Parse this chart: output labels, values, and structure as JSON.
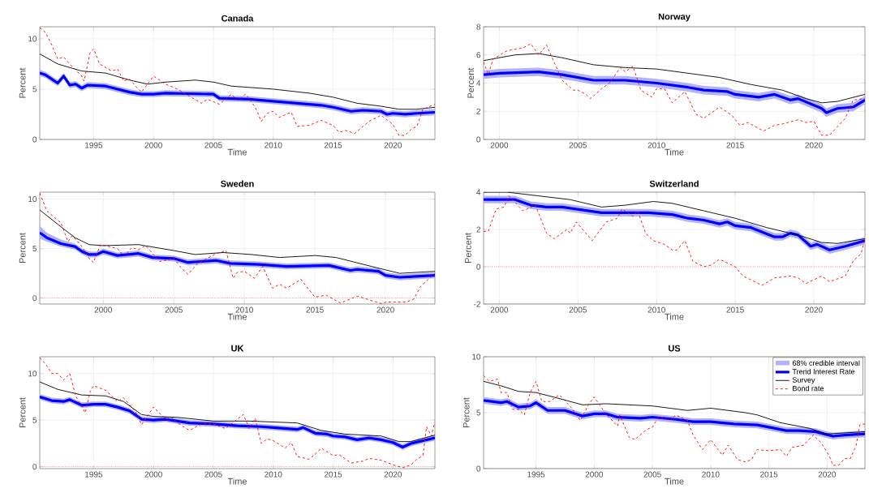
{
  "chart_data": [
    {
      "type": "line",
      "title": "Canada",
      "xlabel": "Time",
      "ylabel": "Percent",
      "xlim": [
        1990.5,
        2023.5
      ],
      "ylim": [
        0,
        11.2
      ],
      "xticks": [
        1995,
        2000,
        2005,
        2010,
        2015,
        2020
      ],
      "yticks": [
        0,
        5,
        10
      ],
      "grid": true,
      "series": [
        {
          "type": "line",
          "color": "#0000ff",
          "x": [
            1990.5,
            1991,
            1992,
            1992.5,
            1993,
            1993.5,
            1994,
            1994.5,
            1996,
            1998,
            1999,
            2000,
            2001,
            2005,
            2005.5,
            2008,
            2011,
            2014,
            2015,
            2016.5,
            2017.5,
            2019,
            2019.5,
            2020,
            2021,
            2022,
            2023.5
          ],
          "values": [
            6.6,
            6.4,
            5.6,
            6.3,
            5.4,
            5.5,
            5.1,
            5.4,
            5.3,
            4.7,
            4.5,
            4.5,
            4.6,
            4.5,
            4.1,
            4.0,
            3.7,
            3.4,
            3.2,
            2.8,
            2.9,
            2.8,
            2.5,
            2.6,
            2.5,
            2.6,
            2.7
          ],
          "lower": [
            6.3,
            6.1,
            5.3,
            6.0,
            5.1,
            5.2,
            4.8,
            5.1,
            5.0,
            4.4,
            4.2,
            4.2,
            4.3,
            4.2,
            3.8,
            3.7,
            3.4,
            3.1,
            2.9,
            2.5,
            2.6,
            2.5,
            2.2,
            2.3,
            2.2,
            2.3,
            2.4
          ],
          "upper": [
            6.9,
            6.7,
            5.9,
            6.6,
            5.7,
            5.8,
            5.4,
            5.7,
            5.6,
            5.0,
            4.8,
            4.8,
            4.9,
            4.8,
            4.4,
            4.3,
            4.0,
            3.7,
            3.5,
            3.1,
            3.2,
            3.1,
            2.8,
            2.9,
            2.8,
            2.9,
            3.0
          ]
        },
        {
          "type": "line",
          "color": "#000000",
          "x": [
            1990.5,
            1992,
            1994,
            1996,
            1998,
            1999.5,
            2001,
            2003.5,
            2005,
            2006.5,
            2010,
            2013,
            2015,
            2017,
            2019,
            2020.5,
            2022,
            2023.5
          ],
          "values": [
            8.5,
            7.5,
            6.8,
            6.6,
            5.9,
            5.5,
            5.7,
            5.9,
            5.7,
            5.3,
            5.0,
            4.6,
            4.2,
            3.6,
            3.3,
            3.0,
            3.0,
            3.2
          ]
        },
        {
          "type": "line",
          "color": "#ff0000",
          "line_style": "dashed",
          "x": [
            1990.5,
            1991,
            1991.5,
            1992,
            1992.5,
            1993,
            1994,
            1994.2,
            1994.7,
            1995,
            1995.5,
            1996.5,
            1997,
            1997.5,
            1998,
            1998.5,
            1999,
            2000,
            2001,
            2002,
            2003,
            2004,
            2004.5,
            2005.5,
            2006.5,
            2007,
            2007.7,
            2008.5,
            2009,
            2009.5,
            2010,
            2010.5,
            2011.5,
            2012,
            2013,
            2014,
            2015,
            2015.5,
            2016,
            2016.8,
            2017.5,
            2018,
            2019,
            2020,
            2020.5,
            2021,
            2021.5,
            2022,
            2022.5,
            2023.5
          ],
          "values": [
            11.1,
            10.6,
            9.4,
            8.0,
            8.2,
            7.5,
            6.3,
            5.8,
            8.6,
            9.0,
            7.5,
            6.8,
            7.0,
            5.8,
            6.0,
            5.3,
            4.7,
            6.3,
            5.5,
            5.0,
            4.3,
            3.6,
            4.0,
            3.5,
            4.5,
            3.9,
            4.5,
            3.2,
            1.8,
            2.6,
            2.8,
            2.2,
            2.7,
            1.3,
            1.4,
            1.9,
            1.4,
            0.7,
            0.9,
            0.6,
            1.3,
            1.8,
            2.4,
            1.5,
            0.4,
            0.4,
            1.0,
            1.3,
            3.0,
            3.5
          ]
        }
      ]
    },
    {
      "type": "line",
      "title": "Norway",
      "xlabel": "Time",
      "ylabel": "Percent",
      "xlim": [
        1999,
        2023.25
      ],
      "ylim": [
        0,
        8
      ],
      "xticks": [
        2000,
        2005,
        2010,
        2015,
        2020
      ],
      "yticks": [
        0,
        2,
        4,
        6,
        8
      ],
      "grid": true,
      "series": [
        {
          "type": "line",
          "color": "#0000ff",
          "x": [
            1999,
            2000,
            2002.5,
            2004,
            2005,
            2006,
            2008,
            2010,
            2012,
            2013,
            2014.5,
            2015,
            2016.5,
            2017.5,
            2018.5,
            2019,
            2020.5,
            2020.8,
            2021.5,
            2022.5,
            2023.25
          ],
          "values": [
            4.6,
            4.7,
            4.8,
            4.6,
            4.4,
            4.2,
            4.2,
            4.0,
            3.7,
            3.5,
            3.4,
            3.2,
            3.0,
            3.2,
            2.8,
            2.9,
            2.2,
            1.9,
            2.2,
            2.3,
            2.8
          ],
          "lower": [
            4.3,
            4.4,
            4.5,
            4.3,
            4.1,
            3.9,
            3.9,
            3.7,
            3.4,
            3.2,
            3.1,
            2.9,
            2.7,
            2.9,
            2.5,
            2.6,
            1.9,
            1.6,
            1.9,
            2.0,
            2.5
          ],
          "upper": [
            4.9,
            5.0,
            5.1,
            4.9,
            4.7,
            4.5,
            4.5,
            4.3,
            4.0,
            3.8,
            3.7,
            3.5,
            3.3,
            3.5,
            3.1,
            3.2,
            2.5,
            2.2,
            2.5,
            2.6,
            3.1
          ]
        },
        {
          "type": "line",
          "color": "#000000",
          "x": [
            1999,
            2001,
            2002.5,
            2004,
            2006,
            2008,
            2010,
            2012,
            2014,
            2016,
            2018,
            2019.5,
            2020.5,
            2021.5,
            2023.25
          ],
          "values": [
            5.6,
            6.0,
            6.1,
            5.8,
            5.3,
            5.1,
            5.0,
            4.7,
            4.4,
            3.9,
            3.5,
            2.9,
            2.6,
            2.7,
            3.2
          ]
        },
        {
          "type": "line",
          "color": "#ff0000",
          "line_style": "dashed",
          "x": [
            1999,
            1999.3,
            1999.6,
            2000.5,
            2001.5,
            2002,
            2002.5,
            2003,
            2004,
            2004.7,
            2005,
            2005.5,
            2005.8,
            2006.5,
            2007,
            2007.7,
            2008,
            2008.5,
            2009,
            2009.7,
            2010,
            2010.5,
            2011,
            2011.8,
            2012.5,
            2013,
            2014,
            2014.8,
            2015.3,
            2015.8,
            2016.8,
            2017.5,
            2018,
            2019,
            2019.5,
            2020,
            2020.5,
            2021,
            2022,
            2022.5,
            2023.25
          ],
          "values": [
            5.5,
            4.6,
            5.7,
            6.3,
            6.5,
            6.8,
            6.0,
            6.7,
            4.2,
            3.5,
            3.5,
            3.2,
            2.9,
            3.6,
            4.0,
            5.1,
            4.8,
            5.2,
            3.5,
            3.0,
            3.6,
            3.6,
            2.6,
            3.4,
            1.8,
            1.5,
            2.3,
            1.7,
            1.0,
            1.2,
            0.6,
            1.0,
            1.1,
            1.4,
            1.2,
            1.3,
            0.3,
            0.3,
            1.5,
            2.8,
            2.9
          ]
        }
      ]
    },
    {
      "type": "line",
      "title": "Sweden",
      "xlabel": "Time",
      "ylabel": "Percent",
      "xlim": [
        1995.5,
        2023.5
      ],
      "ylim": [
        -0.6,
        10.7
      ],
      "xticks": [
        2000,
        2005,
        2010,
        2015,
        2020
      ],
      "yticks": [
        0,
        5,
        10
      ],
      "grid": true,
      "ref_lines": [
        {
          "axis": "y",
          "value": 0,
          "color": "#ff0000",
          "line_style": "dotted"
        }
      ],
      "series": [
        {
          "type": "line",
          "color": "#0000ff",
          "x": [
            1995.5,
            1996,
            1997,
            1998,
            1998.5,
            1999,
            1999.5,
            2000,
            2001,
            2002.5,
            2003.5,
            2005,
            2006,
            2008,
            2009,
            2011,
            2013,
            2016,
            2017.5,
            2018,
            2019.5,
            2020,
            2021,
            2023.5
          ],
          "values": [
            6.6,
            6.1,
            5.5,
            5.2,
            4.7,
            4.4,
            4.4,
            4.7,
            4.3,
            4.5,
            4.1,
            4.0,
            3.6,
            3.8,
            3.5,
            3.4,
            3.2,
            3.3,
            2.8,
            2.9,
            2.7,
            2.3,
            2.1,
            2.3
          ],
          "lower": [
            6.0,
            5.7,
            5.2,
            4.9,
            4.4,
            4.1,
            4.1,
            4.4,
            4.0,
            4.2,
            3.8,
            3.7,
            3.3,
            3.5,
            3.2,
            3.1,
            2.9,
            3.0,
            2.5,
            2.6,
            2.4,
            2.0,
            1.8,
            2.0
          ],
          "upper": [
            7.3,
            6.6,
            5.9,
            5.5,
            5.0,
            4.7,
            4.7,
            5.0,
            4.6,
            4.8,
            4.4,
            4.3,
            3.9,
            4.1,
            3.8,
            3.7,
            3.5,
            3.6,
            3.1,
            3.2,
            3.0,
            2.6,
            2.4,
            2.6
          ]
        },
        {
          "type": "line",
          "color": "#000000",
          "x": [
            1995.5,
            1997,
            1998,
            1999,
            2000,
            2002.5,
            2005,
            2006.5,
            2008.5,
            2010.5,
            2012.5,
            2015,
            2016.5,
            2019,
            2021,
            2023.5
          ],
          "values": [
            8.9,
            7.2,
            6.1,
            5.4,
            5.3,
            5.4,
            4.8,
            4.4,
            4.6,
            4.4,
            4.1,
            4.3,
            4.1,
            3.2,
            2.5,
            2.7
          ]
        },
        {
          "type": "line",
          "color": "#ff0000",
          "line_style": "dashed",
          "x": [
            1995.5,
            1996,
            1997,
            1997.5,
            1997.8,
            1998.5,
            1999,
            1999.3,
            1999.8,
            2001,
            2001.5,
            2002,
            2002.5,
            2003,
            2004,
            2005,
            2005.5,
            2006,
            2006.7,
            2008,
            2008.7,
            2009.2,
            2009.5,
            2010,
            2010.7,
            2011.3,
            2012,
            2012.5,
            2013,
            2014,
            2015,
            2015.8,
            2016.8,
            2018,
            2019.8,
            2020,
            2021.5,
            2022,
            2022.5,
            2023.5
          ],
          "values": [
            10.6,
            8.8,
            7.6,
            5.7,
            6.3,
            5.2,
            4.0,
            3.6,
            5.4,
            5.0,
            4.2,
            5.1,
            4.9,
            5.3,
            3.7,
            4.0,
            3.1,
            2.4,
            3.5,
            4.5,
            4.8,
            2.0,
            2.6,
            2.7,
            2.0,
            3.2,
            1.0,
            1.4,
            1.0,
            1.9,
            0.1,
            0.3,
            -0.5,
            0.2,
            -0.6,
            -0.4,
            -0.4,
            -0.1,
            1.2,
            2.5
          ]
        }
      ]
    },
    {
      "type": "line",
      "title": "Switzerland",
      "xlabel": "Time",
      "ylabel": "Percent",
      "xlim": [
        1999,
        2023.25
      ],
      "ylim": [
        -2,
        4
      ],
      "xticks": [
        2000,
        2005,
        2010,
        2015,
        2020
      ],
      "yticks": [
        -2,
        0,
        2,
        4
      ],
      "grid": true,
      "ref_lines": [
        {
          "axis": "y",
          "value": 0,
          "color": "#ff0000",
          "line_style": "dotted"
        }
      ],
      "series": [
        {
          "type": "line",
          "color": "#0000ff",
          "x": [
            1999,
            2000,
            2001,
            2002,
            2003,
            2004,
            2006.5,
            2008,
            2009.5,
            2011,
            2012,
            2013,
            2014,
            2014.5,
            2015,
            2016,
            2017.5,
            2018,
            2018.5,
            2019,
            2019.8,
            2020.2,
            2021,
            2022,
            2023.25
          ],
          "values": [
            3.6,
            3.6,
            3.6,
            3.3,
            3.2,
            3.2,
            2.9,
            2.9,
            2.9,
            2.8,
            2.6,
            2.5,
            2.3,
            2.4,
            2.2,
            2.1,
            1.6,
            1.6,
            1.8,
            1.7,
            1.1,
            1.2,
            0.9,
            1.1,
            1.4
          ],
          "lower": [
            3.4,
            3.4,
            3.4,
            3.1,
            3.0,
            3.0,
            2.7,
            2.7,
            2.7,
            2.6,
            2.4,
            2.3,
            2.1,
            2.2,
            2.0,
            1.9,
            1.4,
            1.4,
            1.6,
            1.5,
            0.9,
            1.0,
            0.7,
            0.9,
            1.2
          ],
          "upper": [
            3.8,
            3.8,
            3.8,
            3.5,
            3.4,
            3.4,
            3.1,
            3.1,
            3.1,
            3.0,
            2.8,
            2.7,
            2.5,
            2.6,
            2.4,
            2.3,
            1.8,
            1.8,
            2.0,
            1.9,
            1.3,
            1.4,
            1.1,
            1.3,
            1.6
          ]
        },
        {
          "type": "line",
          "color": "#000000",
          "x": [
            1999,
            2000.5,
            2002.5,
            2004.5,
            2006.5,
            2008,
            2009.8,
            2011,
            2013,
            2015,
            2017,
            2019,
            2020.5,
            2021.5,
            2023.25
          ],
          "values": [
            4.0,
            4.0,
            3.8,
            3.6,
            3.2,
            3.3,
            3.5,
            3.4,
            3.0,
            2.6,
            2.1,
            1.7,
            1.3,
            1.25,
            1.5
          ]
        },
        {
          "type": "line",
          "color": "#ff0000",
          "line_style": "dashed",
          "x": [
            1999,
            1999.3,
            1999.8,
            2000.3,
            2000.6,
            2001.5,
            2002.3,
            2003,
            2003.5,
            2004.3,
            2004.5,
            2004.9,
            2005.5,
            2005.9,
            2006.8,
            2007.5,
            2007.8,
            2008.5,
            2008.8,
            2009.3,
            2009.8,
            2010.5,
            2011,
            2011.3,
            2011.8,
            2012.3,
            2013,
            2013.5,
            2014,
            2014.5,
            2015,
            2015.5,
            2016,
            2016.7,
            2017.5,
            2018.5,
            2019,
            2019.5,
            2020.5,
            2021,
            2022,
            2022.5,
            2023,
            2023.25
          ],
          "values": [
            1.9,
            1.9,
            3.1,
            3.2,
            3.8,
            3.0,
            3.3,
            1.8,
            1.5,
            2.0,
            1.8,
            2.4,
            1.8,
            1.4,
            2.4,
            2.6,
            3.1,
            2.7,
            3.0,
            1.8,
            1.4,
            1.2,
            0.9,
            0.9,
            1.4,
            0.3,
            0.0,
            0.1,
            0.4,
            0.2,
            0.0,
            -0.5,
            -0.7,
            -1.0,
            -0.6,
            -0.5,
            -0.6,
            -0.9,
            -0.5,
            -0.8,
            -0.5,
            0.3,
            0.7,
            1.5
          ]
        }
      ]
    },
    {
      "type": "line",
      "title": "UK",
      "xlabel": "Time",
      "ylabel": "Percent",
      "xlim": [
        1990.5,
        2023.5
      ],
      "ylim": [
        -0.2,
        11.8
      ],
      "xticks": [
        1995,
        2000,
        2005,
        2010,
        2015,
        2020
      ],
      "yticks": [
        0,
        5,
        10
      ],
      "grid": true,
      "ref_lines": [
        {
          "axis": "y",
          "value": 0,
          "color": "#ff0000",
          "line_style": "dotted"
        }
      ],
      "series": [
        {
          "type": "line",
          "color": "#0000ff",
          "x": [
            1990.5,
            1991.5,
            1992.5,
            1993,
            1994,
            1995,
            1996,
            1997,
            1998,
            1999,
            2000,
            2001,
            2003,
            2005,
            2007,
            2009,
            2010,
            2012,
            2012.5,
            2013.5,
            2014.5,
            2015,
            2016,
            2017,
            2018,
            2019,
            2020,
            2020.8,
            2021.5,
            2023.5
          ],
          "values": [
            7.5,
            7.1,
            7.0,
            7.2,
            6.6,
            6.7,
            6.7,
            6.4,
            6.0,
            5.1,
            5.0,
            5.1,
            4.7,
            4.6,
            4.4,
            4.3,
            4.2,
            4.0,
            4.2,
            3.6,
            3.5,
            3.3,
            3.2,
            2.9,
            3.1,
            2.9,
            2.6,
            2.1,
            2.5,
            3.1
          ],
          "lower": [
            7.2,
            6.8,
            6.7,
            6.9,
            6.3,
            6.4,
            6.4,
            6.1,
            5.7,
            4.8,
            4.7,
            4.8,
            4.4,
            4.3,
            4.1,
            4.0,
            3.9,
            3.7,
            3.9,
            3.3,
            3.2,
            3.0,
            2.9,
            2.6,
            2.8,
            2.6,
            2.3,
            1.8,
            2.2,
            2.8
          ],
          "upper": [
            7.8,
            7.4,
            7.3,
            7.5,
            6.9,
            7.0,
            7.0,
            6.7,
            6.3,
            5.4,
            5.3,
            5.4,
            5.0,
            4.9,
            4.7,
            4.6,
            4.5,
            4.3,
            4.5,
            3.9,
            3.8,
            3.6,
            3.5,
            3.2,
            3.4,
            3.2,
            2.9,
            2.4,
            2.8,
            3.4
          ]
        },
        {
          "type": "line",
          "color": "#000000",
          "x": [
            1990.5,
            1992,
            1994,
            1996,
            1997.5,
            1999,
            2000,
            2002,
            2005,
            2008,
            2012,
            2014,
            2016,
            2019,
            2020.5,
            2021.5,
            2023.5
          ],
          "values": [
            9.1,
            8.3,
            7.7,
            7.6,
            7.0,
            5.6,
            5.4,
            5.3,
            4.9,
            4.9,
            4.7,
            3.9,
            3.5,
            3.3,
            2.7,
            2.7,
            3.4
          ]
        },
        {
          "type": "line",
          "color": "#ff0000",
          "line_style": "dashed",
          "x": [
            1990.5,
            1991,
            1991.5,
            1992,
            1992.5,
            1993,
            1993.5,
            1994.3,
            1994.7,
            1995,
            1996,
            1997,
            1997.5,
            1998.5,
            1999,
            2000,
            2001,
            2001.5,
            2002,
            2003,
            2004,
            2005,
            2006,
            2007.5,
            2008,
            2008.5,
            2009,
            2009.5,
            2010,
            2011,
            2011.5,
            2012,
            2013,
            2013.7,
            2014,
            2015,
            2015.5,
            2016.5,
            2017.5,
            2018,
            2019,
            2020,
            2020.8,
            2021.5,
            2022,
            2022.5,
            2022.8,
            2023.2,
            2023.5
          ],
          "values": [
            11.7,
            11.0,
            10.0,
            10.0,
            9.3,
            10.0,
            7.6,
            5.8,
            8.0,
            8.7,
            8.2,
            7.0,
            7.4,
            5.9,
            4.5,
            6.4,
            5.1,
            5.3,
            4.7,
            3.9,
            4.6,
            4.6,
            4.1,
            5.6,
            4.1,
            5.2,
            2.5,
            3.0,
            2.8,
            2.0,
            2.6,
            1.1,
            0.8,
            1.6,
            2.0,
            1.2,
            1.3,
            0.4,
            0.6,
            0.9,
            0.7,
            0.2,
            -0.1,
            0.2,
            0.8,
            1.2,
            4.3,
            3.3,
            4.8
          ]
        }
      ]
    },
    {
      "type": "line",
      "title": "US",
      "xlabel": "Time",
      "ylabel": "Percent",
      "xlim": [
        1990.5,
        2023.25
      ],
      "ylim": [
        0,
        10
      ],
      "xticks": [
        1995,
        2000,
        2005,
        2010,
        2015,
        2020
      ],
      "yticks": [
        0,
        5,
        10
      ],
      "grid": true,
      "legend": "top right",
      "annotations": [
        "68% credible interval"
      ],
      "ref_lines": [
        {
          "axis": "y",
          "value": 0,
          "color": "#ff0000",
          "line_style": "dotted"
        }
      ],
      "series": [
        {
          "type": "line",
          "name": "Trend Interest Rate",
          "color": "#0000ff",
          "x": [
            1990.5,
            1992,
            1992.5,
            1993.5,
            1994.5,
            1995,
            1996,
            1997.5,
            1999,
            2000,
            2001,
            2002,
            2004,
            2005,
            2007,
            2008.5,
            2010,
            2012,
            2014,
            2015,
            2016.5,
            2017.5,
            2019,
            2020.5,
            2021.5,
            2023.25
          ],
          "values": [
            6.1,
            5.9,
            6.0,
            5.5,
            5.6,
            5.9,
            5.2,
            5.2,
            4.7,
            4.9,
            4.9,
            4.6,
            4.5,
            4.6,
            4.4,
            4.2,
            4.2,
            4.0,
            3.9,
            3.7,
            3.4,
            3.4,
            3.3,
            2.9,
            3.0,
            3.1
          ],
          "lower": [
            5.8,
            5.6,
            5.7,
            5.2,
            5.3,
            5.6,
            4.9,
            4.9,
            4.4,
            4.6,
            4.6,
            4.3,
            4.2,
            4.3,
            4.1,
            3.9,
            3.9,
            3.7,
            3.6,
            3.4,
            3.1,
            3.1,
            3.0,
            2.6,
            2.7,
            2.8
          ],
          "upper": [
            6.4,
            6.2,
            6.3,
            5.8,
            5.9,
            6.2,
            5.5,
            5.5,
            5.0,
            5.2,
            5.2,
            4.9,
            4.8,
            4.9,
            4.7,
            4.5,
            4.5,
            4.3,
            4.2,
            4.0,
            3.7,
            3.7,
            3.6,
            3.2,
            3.3,
            3.4
          ]
        },
        {
          "type": "line",
          "name": "Survey",
          "color": "#000000",
          "x": [
            1990.5,
            1992,
            1993.5,
            1995,
            1996.5,
            1999,
            2001,
            2005,
            2008,
            2010,
            2013,
            2014,
            2016,
            2018.5,
            2020,
            2023.25
          ],
          "values": [
            7.8,
            7.4,
            6.9,
            6.8,
            6.4,
            5.7,
            5.8,
            5.6,
            5.2,
            5.4,
            5.0,
            4.8,
            4.1,
            3.6,
            3.1,
            3.3
          ]
        },
        {
          "type": "line",
          "name": "Bond rate",
          "color": "#ff0000",
          "line_style": "dashed",
          "x": [
            1990.5,
            1991,
            1991.7,
            1992,
            1992.5,
            1993,
            1993.5,
            1994,
            1994.5,
            1995,
            1995.5,
            1996.2,
            1997,
            1998,
            1998.8,
            1999.5,
            2000,
            2001,
            2002,
            2002.2,
            2003,
            2003.5,
            2004.5,
            2005,
            2005.5,
            2006.5,
            2007,
            2008,
            2008.5,
            2009.3,
            2010,
            2011,
            2011.5,
            2012.3,
            2013,
            2013.5,
            2014,
            2015,
            2016,
            2016.5,
            2017,
            2018,
            2018.8,
            2019.5,
            2020.2,
            2020.5,
            2021,
            2021.5,
            2022,
            2022.5,
            2022.8,
            2023.25
          ],
          "values": [
            8.3,
            7.8,
            8.0,
            6.8,
            6.8,
            5.3,
            5.3,
            4.8,
            6.8,
            7.8,
            6.0,
            6.0,
            6.6,
            5.5,
            4.3,
            5.7,
            6.4,
            4.9,
            3.8,
            4.8,
            2.8,
            2.6,
            3.5,
            3.7,
            4.6,
            4.3,
            4.8,
            4.3,
            3.0,
            1.7,
            2.6,
            1.2,
            2.1,
            0.8,
            0.6,
            0.8,
            1.7,
            1.6,
            1.7,
            1.1,
            1.9,
            2.1,
            3.0,
            2.3,
            1.1,
            0.3,
            0.3,
            0.9,
            0.9,
            2.1,
            3.9,
            4.0
          ]
        }
      ]
    }
  ]
}
